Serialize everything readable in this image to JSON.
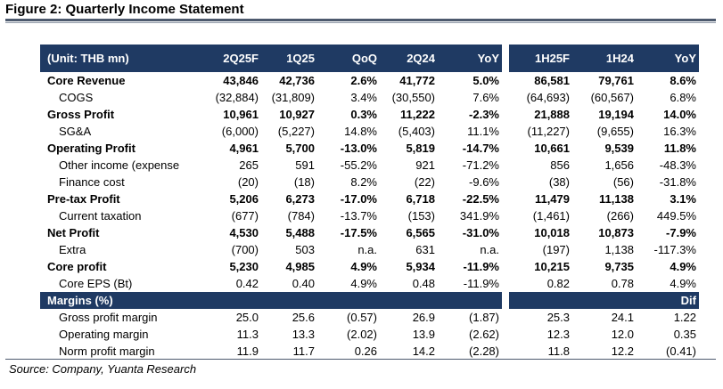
{
  "figure": {
    "title": "Figure 2: Quarterly Income Statement",
    "source": "Source: Company, Yuanta Research"
  },
  "colors": {
    "header_bg": "#1f3a63",
    "header_text": "#ffffff",
    "rule": "#4d5a6e",
    "zebra": "#eaedf2"
  },
  "left_panel": {
    "headers": [
      "(Unit: THB mn)",
      "2Q25F",
      "1Q25",
      "QoQ",
      "2Q24",
      "YoY"
    ],
    "rows": [
      {
        "label": "Core Revenue",
        "cells": [
          "43,846",
          "42,736",
          "2.6%",
          "41,772",
          "5.0%"
        ]
      },
      {
        "label": "COGS",
        "cells": [
          "(32,884)",
          "(31,809)",
          "3.4%",
          "(30,550)",
          "7.6%"
        ]
      },
      {
        "label": "Gross Profit",
        "cells": [
          "10,961",
          "10,927",
          "0.3%",
          "11,222",
          "-2.3%"
        ]
      },
      {
        "label": "SG&A",
        "cells": [
          "(6,000)",
          "(5,227)",
          "14.8%",
          "(5,403)",
          "11.1%"
        ]
      },
      {
        "label": "Operating Profit",
        "cells": [
          "4,961",
          "5,700",
          "-13.0%",
          "5,819",
          "-14.7%"
        ]
      },
      {
        "label": "Other income (expense",
        "cells": [
          "265",
          "591",
          "-55.2%",
          "921",
          "-71.2%"
        ]
      },
      {
        "label": "Finance cost",
        "cells": [
          "(20)",
          "(18)",
          "8.2%",
          "(22)",
          "-9.6%"
        ]
      },
      {
        "label": "Pre-tax Profit",
        "cells": [
          "5,206",
          "6,273",
          "-17.0%",
          "6,718",
          "-22.5%"
        ]
      },
      {
        "label": "Current taxation",
        "cells": [
          "(677)",
          "(784)",
          "-13.7%",
          "(153)",
          "341.9%"
        ]
      },
      {
        "label": "Net Profit",
        "cells": [
          "4,530",
          "5,488",
          "-17.5%",
          "6,565",
          "-31.0%"
        ]
      },
      {
        "label": "Extra",
        "cells": [
          "(700)",
          "503",
          "n.a.",
          "631",
          "n.a."
        ]
      },
      {
        "label": "Core profit",
        "cells": [
          "5,230",
          "4,985",
          "4.9%",
          "5,934",
          "-11.9%"
        ]
      },
      {
        "label": "Core EPS (Bt)",
        "cells": [
          "0.42",
          "0.40",
          "4.9%",
          "0.48",
          "-11.9%"
        ]
      }
    ],
    "margins_label": "Margins (%)",
    "margins": [
      {
        "label": "Gross profit margin",
        "cells": [
          "25.0",
          "25.6",
          "(0.57)",
          "26.9",
          "(1.87)"
        ]
      },
      {
        "label": "Operating margin",
        "cells": [
          "11.3",
          "13.3",
          "(2.02)",
          "13.9",
          "(2.62)"
        ]
      },
      {
        "label": "Norm profit margin",
        "cells": [
          "11.9",
          "11.7",
          "0.26",
          "14.2",
          "(2.28)"
        ]
      }
    ]
  },
  "right_panel": {
    "headers": [
      "1H25F",
      "1H24",
      "YoY"
    ],
    "rows": [
      [
        "86,581",
        "79,761",
        "8.6%"
      ],
      [
        "(64,693)",
        "(60,567)",
        "6.8%"
      ],
      [
        "21,888",
        "19,194",
        "14.0%"
      ],
      [
        "(11,227)",
        "(9,655)",
        "16.3%"
      ],
      [
        "10,661",
        "9,539",
        "11.8%"
      ],
      [
        "856",
        "1,656",
        "-48.3%"
      ],
      [
        "(38)",
        "(56)",
        "-31.8%"
      ],
      [
        "11,479",
        "11,138",
        "3.1%"
      ],
      [
        "(1,461)",
        "(266)",
        "449.5%"
      ],
      [
        "10,018",
        "10,873",
        "-7.9%"
      ],
      [
        "(197)",
        "1,138",
        "-117.3%"
      ],
      [
        "10,215",
        "9,735",
        "4.9%"
      ],
      [
        "0.82",
        "0.78",
        "4.9%"
      ]
    ],
    "margins_label": "Dif",
    "margins": [
      [
        "25.3",
        "24.1",
        "1.22"
      ],
      [
        "12.3",
        "12.0",
        "0.35"
      ],
      [
        "11.8",
        "12.2",
        "(0.41)"
      ]
    ]
  }
}
